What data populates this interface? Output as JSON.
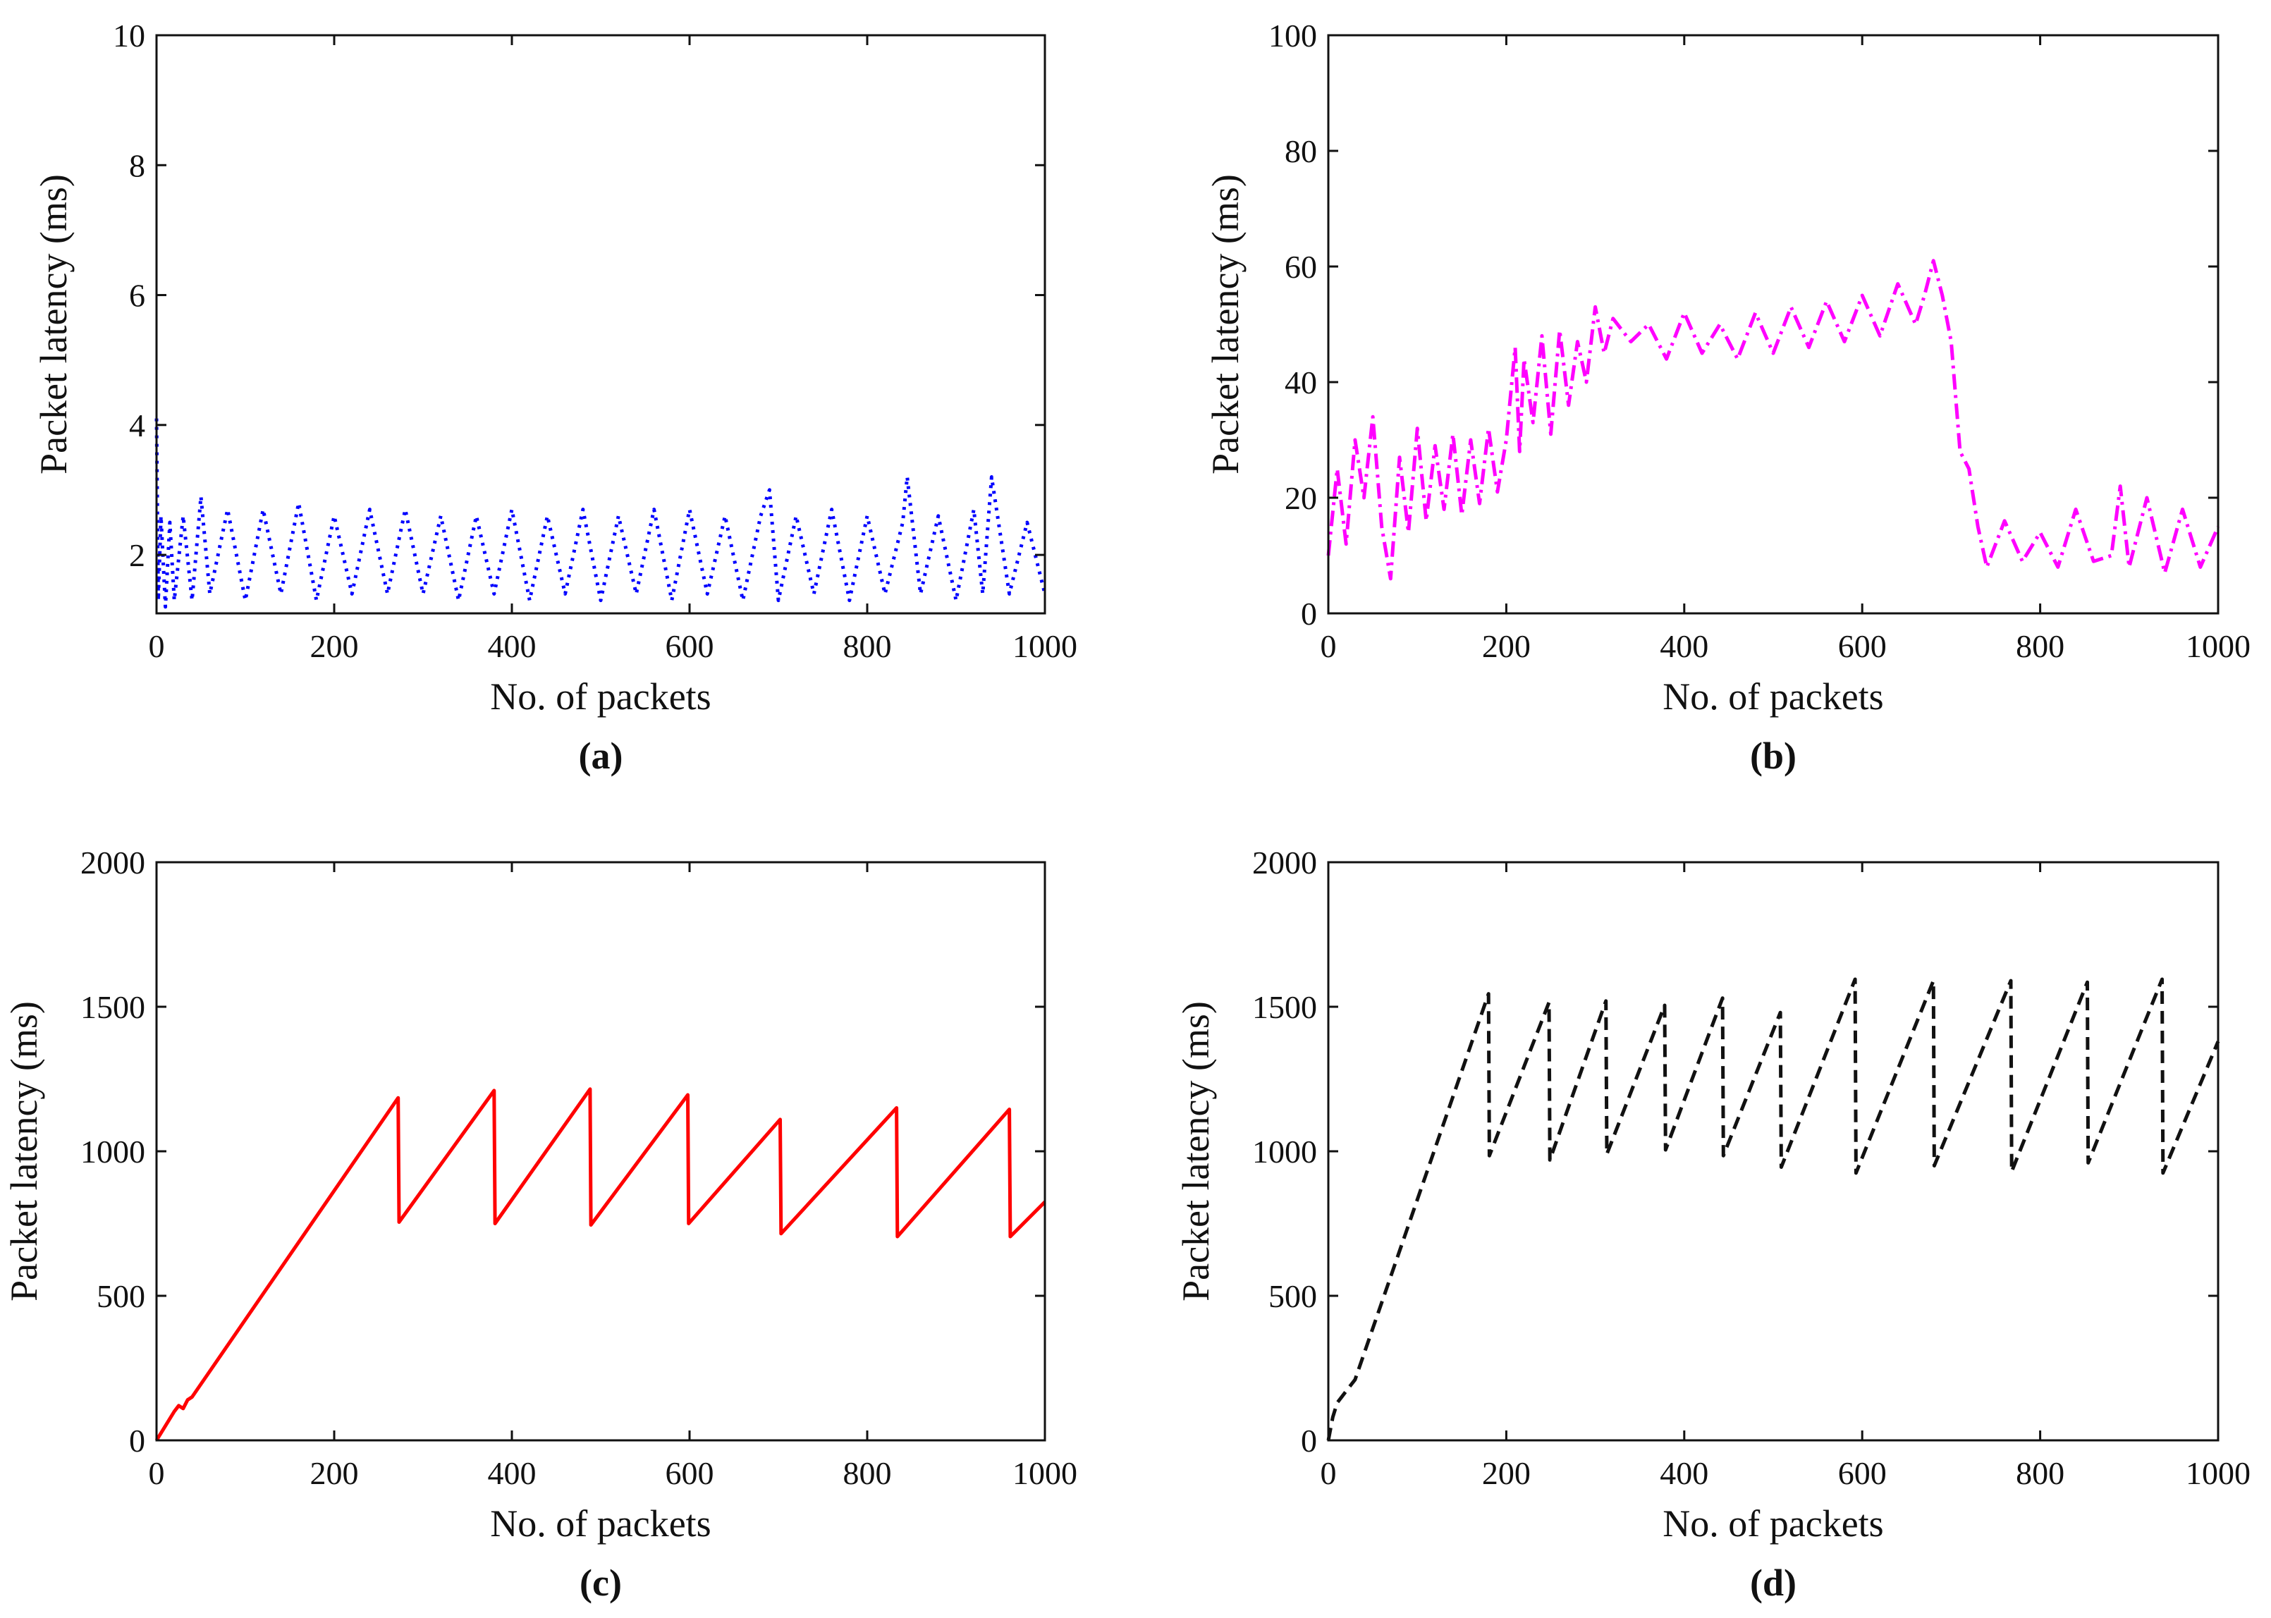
{
  "chart_data": [
    {
      "type": "line",
      "panel": "(a)",
      "caption": "(a)",
      "xlabel": "No. of packets",
      "ylabel": "Packet latency (ms)",
      "xlim": [
        0,
        1000
      ],
      "ylim": [
        1.1,
        10
      ],
      "xticks": [
        "0",
        "200",
        "400",
        "600",
        "800",
        "1000"
      ],
      "yticks": [
        "2",
        "4",
        "6",
        "8",
        "10"
      ],
      "xtick_values": [
        0,
        200,
        400,
        600,
        800,
        1000
      ],
      "ytick_values": [
        2,
        4,
        6,
        8,
        10
      ],
      "line_color": "#0000ff",
      "line_style": "dotted",
      "x": [
        0,
        2,
        5,
        10,
        15,
        20,
        30,
        40,
        50,
        60,
        80,
        100,
        120,
        140,
        160,
        180,
        200,
        220,
        240,
        260,
        280,
        300,
        320,
        340,
        360,
        380,
        400,
        420,
        440,
        460,
        480,
        500,
        520,
        540,
        560,
        580,
        600,
        620,
        640,
        660,
        680,
        690,
        700,
        720,
        740,
        760,
        780,
        800,
        820,
        840,
        845,
        860,
        880,
        900,
        920,
        930,
        940,
        960,
        980,
        1000
      ],
      "y": [
        4.1,
        1.3,
        2.6,
        1.2,
        2.5,
        1.3,
        2.6,
        1.3,
        2.9,
        1.4,
        2.7,
        1.3,
        2.7,
        1.4,
        2.8,
        1.3,
        2.6,
        1.4,
        2.7,
        1.4,
        2.7,
        1.4,
        2.6,
        1.3,
        2.6,
        1.4,
        2.7,
        1.3,
        2.6,
        1.4,
        2.7,
        1.3,
        2.6,
        1.4,
        2.7,
        1.3,
        2.7,
        1.4,
        2.6,
        1.3,
        2.6,
        3.0,
        1.3,
        2.6,
        1.4,
        2.7,
        1.3,
        2.6,
        1.4,
        2.5,
        3.2,
        1.4,
        2.6,
        1.3,
        2.7,
        1.4,
        3.2,
        1.4,
        2.5,
        1.4
      ]
    },
    {
      "type": "line",
      "panel": "(b)",
      "caption": "(b)",
      "xlabel": "No. of packets",
      "ylabel": "Packet latency (ms)",
      "xlim": [
        0,
        1000
      ],
      "ylim": [
        0,
        100
      ],
      "xticks": [
        "0",
        "200",
        "400",
        "600",
        "800",
        "1000"
      ],
      "yticks": [
        "0",
        "20",
        "40",
        "60",
        "80",
        "100"
      ],
      "xtick_values": [
        0,
        200,
        400,
        600,
        800,
        1000
      ],
      "ytick_values": [
        0,
        20,
        40,
        60,
        80,
        100
      ],
      "line_color": "#ff00ff",
      "line_style": "dash-dot",
      "x": [
        0,
        10,
        20,
        30,
        40,
        50,
        60,
        70,
        80,
        90,
        100,
        110,
        120,
        130,
        140,
        150,
        160,
        170,
        180,
        190,
        200,
        210,
        215,
        220,
        230,
        240,
        250,
        260,
        270,
        280,
        290,
        300,
        310,
        320,
        340,
        360,
        380,
        400,
        420,
        440,
        460,
        480,
        500,
        520,
        540,
        560,
        580,
        600,
        620,
        640,
        660,
        670,
        680,
        690,
        700,
        710,
        720,
        730,
        740,
        760,
        780,
        800,
        820,
        840,
        860,
        880,
        890,
        900,
        920,
        940,
        960,
        980,
        1000
      ],
      "y": [
        10,
        25,
        12,
        30,
        20,
        34,
        15,
        6,
        27,
        14,
        32,
        16,
        29,
        18,
        31,
        17,
        30,
        19,
        32,
        21,
        30,
        46,
        28,
        44,
        33,
        48,
        31,
        49,
        36,
        47,
        40,
        53,
        45,
        51,
        47,
        50,
        44,
        52,
        45,
        50,
        44,
        52,
        45,
        53,
        46,
        54,
        47,
        55,
        48,
        57,
        50,
        55,
        61,
        55,
        47,
        28,
        25,
        15,
        8,
        16,
        9,
        14,
        8,
        18,
        9,
        10,
        22,
        8,
        20,
        7,
        18,
        8,
        15
      ]
    },
    {
      "type": "line",
      "panel": "(c)",
      "caption": "(c)",
      "xlabel": "No. of packets",
      "ylabel": "Packet latency (ms)",
      "xlim": [
        0,
        1000
      ],
      "ylim": [
        0,
        2000
      ],
      "xticks": [
        "0",
        "200",
        "400",
        "600",
        "800",
        "1000"
      ],
      "yticks": [
        "0",
        "500",
        "1000",
        "1500",
        "2000"
      ],
      "xtick_values": [
        0,
        200,
        400,
        600,
        800,
        1000
      ],
      "ytick_values": [
        0,
        500,
        1000,
        1500,
        2000
      ],
      "line_color": "#ff0000",
      "line_style": "solid",
      "x": [
        0,
        20,
        25,
        30,
        35,
        40,
        272,
        273,
        380,
        381,
        488,
        489,
        598,
        599,
        702,
        703,
        833,
        834,
        960,
        961,
        1000
      ],
      "y": [
        0,
        100,
        120,
        110,
        140,
        150,
        1185,
        755,
        1210,
        750,
        1215,
        745,
        1195,
        750,
        1110,
        715,
        1150,
        705,
        1145,
        705,
        825
      ]
    },
    {
      "type": "line",
      "panel": "(d)",
      "caption": "(d)",
      "xlabel": "No. of packets",
      "ylabel": "Packet latency (ms)",
      "xlim": [
        0,
        1000
      ],
      "ylim": [
        0,
        2000
      ],
      "xticks": [
        "0",
        "200",
        "400",
        "600",
        "800",
        "1000"
      ],
      "yticks": [
        "0",
        "500",
        "1000",
        "1500",
        "2000"
      ],
      "xtick_values": [
        0,
        200,
        400,
        600,
        800,
        1000
      ],
      "ytick_values": [
        0,
        500,
        1000,
        1500,
        2000
      ],
      "line_color": "#111111",
      "line_style": "dashed",
      "x": [
        0,
        5,
        10,
        20,
        25,
        30,
        180,
        181,
        248,
        249,
        312,
        313,
        378,
        379,
        443,
        444,
        508,
        509,
        592,
        593,
        680,
        681,
        767,
        768,
        853,
        854,
        937,
        938,
        1000
      ],
      "y": [
        0,
        80,
        130,
        170,
        190,
        210,
        1545,
        985,
        1515,
        970,
        1520,
        990,
        1505,
        1005,
        1530,
        985,
        1480,
        945,
        1595,
        925,
        1590,
        950,
        1590,
        930,
        1585,
        960,
        1595,
        925,
        1380
      ]
    }
  ]
}
